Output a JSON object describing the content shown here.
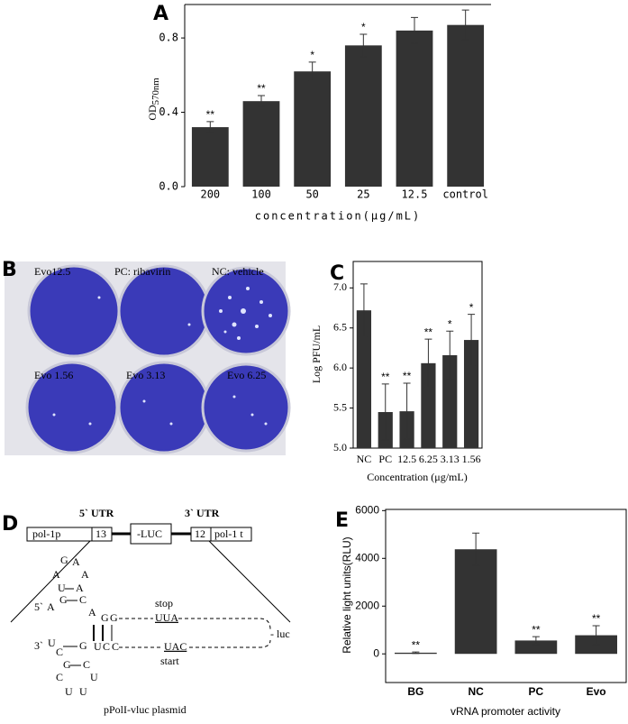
{
  "chart_data": [
    {
      "type": "bar",
      "panel_label": "A",
      "color": "#333333",
      "categories": [
        "200",
        "100",
        "50",
        "25",
        "12.5",
        "control"
      ],
      "values": [
        0.32,
        0.46,
        0.62,
        0.76,
        0.84,
        0.87
      ],
      "errors": [
        0.03,
        0.03,
        0.05,
        0.06,
        0.07,
        0.08
      ],
      "annotations": [
        "**",
        "**",
        "*",
        "*",
        null,
        null
      ],
      "ylim": [
        0,
        0.98
      ],
      "yticks": [
        {
          "value": 0,
          "label": "0.0"
        },
        {
          "value": 0.4,
          "label": "0.4"
        },
        {
          "value": 0.8,
          "label": "0.8"
        }
      ],
      "ylabel": "OD",
      "ylabel_subscript": "570nm",
      "xlabel": "concentration(μg/mL)"
    },
    {
      "type": "bar",
      "panel_label": "C",
      "color": "#333333",
      "categories": [
        "NC",
        "PC",
        "12.5",
        "6.25",
        "3.13",
        "1.56"
      ],
      "values": [
        6.72,
        5.45,
        5.46,
        6.06,
        6.16,
        6.35
      ],
      "errors": [
        0.33,
        0.35,
        0.35,
        0.3,
        0.3,
        0.32
      ],
      "annotations": [
        null,
        "**",
        "**",
        "**",
        "*",
        "*"
      ],
      "ylim": [
        5,
        7.33
      ],
      "yticks": [
        {
          "value": 5,
          "label": "5.0"
        },
        5.5,
        {
          "value": 6,
          "label": "6.0"
        },
        6.5,
        {
          "value": 7,
          "label": "7.0"
        }
      ],
      "ylabel": "Log PFU/mL",
      "xlabel": "Concentration (μg/mL)"
    },
    {
      "type": "bar",
      "panel_label": "E",
      "color": "#333333",
      "categories": [
        "BG",
        "NC",
        "PC",
        "Evo"
      ],
      "values": [
        50,
        4380,
        560,
        780
      ],
      "errors": [
        30,
        680,
        160,
        400
      ],
      "annotations": [
        "**",
        null,
        "**",
        "**"
      ],
      "ylim": [
        -1200,
        6050
      ],
      "yticks": [
        0,
        2000,
        4000,
        6000
      ],
      "ylabel": "Relative light units(RLU)",
      "xlabel": "vRNA promoter activity"
    }
  ],
  "plates": {
    "panel_label": "B",
    "labels": [
      "Evo12.5",
      "PC: ribavirin",
      "NC: vehicle",
      "Evo 1.56",
      "Evo 3.13",
      "Evo 6.25"
    ]
  },
  "diagram": {
    "panel_label": "D",
    "utr5": "5` UTR",
    "utr3": "3` UTR",
    "boxes": [
      "pol-1p",
      "13",
      "-LUC",
      "12",
      "pol-1 t"
    ],
    "nucleotides": [
      "G",
      "A",
      "A",
      "A",
      "U",
      "A",
      "5`",
      "A",
      "G",
      "C",
      "A",
      "G",
      "G",
      "3`",
      "U",
      "C",
      "G",
      "U",
      "C",
      "C",
      "G",
      "C",
      "C",
      "U",
      "U",
      "U"
    ],
    "stop": "stop",
    "stop_codon": "UUA",
    "start_codon": "UAC",
    "start": "start",
    "luc": "- luc",
    "caption": "pPolI-vluc plasmid"
  }
}
